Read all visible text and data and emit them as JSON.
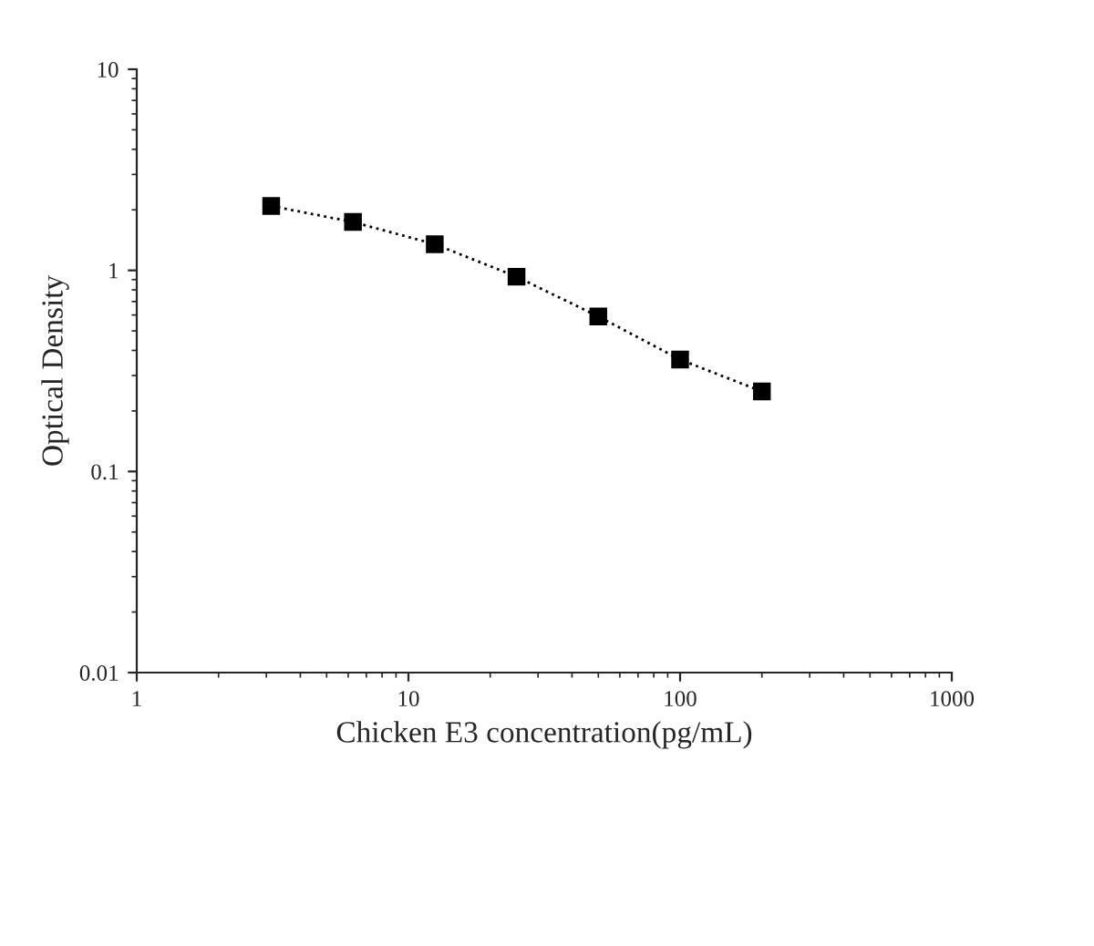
{
  "chart_data": {
    "type": "line",
    "xlabel": "Chicken E3 concentration(pg/mL)",
    "ylabel": "Optical Density",
    "x": [
      3.125,
      6.25,
      12.5,
      25,
      50,
      100,
      200
    ],
    "series": [
      {
        "color": "#000000",
        "values": [
          2.09,
          1.74,
          1.35,
          0.93,
          0.59,
          0.36,
          0.25
        ]
      }
    ],
    "log": "xy",
    "xlim": [
      1,
      1000
    ],
    "ylim": [
      0.01,
      10
    ],
    "xticks": [
      1,
      10,
      100,
      1000
    ],
    "yticks": [
      0.01,
      0.1,
      1,
      10
    ],
    "marker": "square",
    "line_style": "dotted",
    "grid": false,
    "legend": false
  }
}
